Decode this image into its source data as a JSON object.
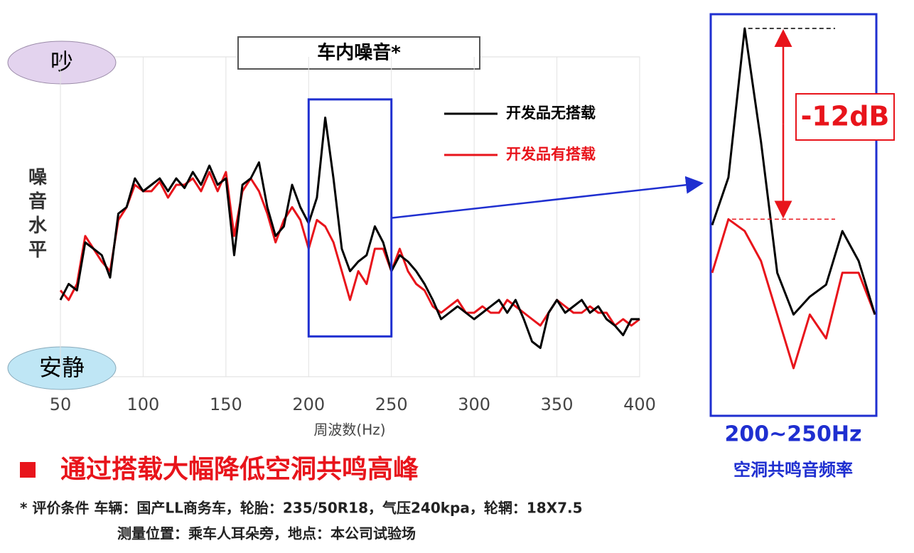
{
  "chart_data": {
    "type": "line",
    "title": "车内噪音*",
    "y_label": "噪音水平",
    "y_high_label": "吵",
    "y_low_label": "安静",
    "x_label": "周波数(Hz)",
    "x": [
      50,
      55,
      60,
      65,
      70,
      75,
      80,
      85,
      90,
      95,
      100,
      105,
      110,
      115,
      120,
      125,
      130,
      135,
      140,
      145,
      150,
      155,
      160,
      165,
      170,
      175,
      180,
      185,
      190,
      195,
      200,
      205,
      210,
      215,
      220,
      225,
      230,
      235,
      240,
      245,
      250,
      255,
      260,
      265,
      270,
      275,
      280,
      285,
      290,
      295,
      300,
      305,
      310,
      315,
      320,
      325,
      330,
      335,
      340,
      345,
      350,
      355,
      360,
      365,
      370,
      375,
      380,
      385,
      390,
      395,
      400
    ],
    "series": [
      {
        "name": "开发品无搭载",
        "color": "#000000",
        "values": [
          24,
          29,
          27,
          42,
          40,
          38,
          31,
          51,
          53,
          62,
          58,
          60,
          62,
          58,
          62,
          59,
          64,
          60,
          66,
          60,
          62,
          38,
          60,
          62,
          67,
          53,
          44,
          47,
          60,
          53,
          48,
          56,
          81,
          62,
          40,
          33,
          36,
          38,
          47,
          42,
          33,
          38,
          36,
          33,
          29,
          24,
          18,
          20,
          22,
          20,
          18,
          20,
          22,
          24,
          20,
          24,
          18,
          11,
          9,
          20,
          24,
          20,
          22,
          24,
          20,
          22,
          18,
          16,
          13,
          18,
          18
        ]
      },
      {
        "name": "开发品有搭载",
        "color": "#e8141b",
        "values": [
          27,
          24,
          29,
          44,
          40,
          36,
          33,
          49,
          53,
          60,
          58,
          58,
          61,
          56,
          60,
          60,
          62,
          58,
          64,
          58,
          64,
          44,
          58,
          62,
          58,
          51,
          42,
          49,
          53,
          49,
          40,
          49,
          47,
          42,
          33,
          24,
          33,
          29,
          40,
          40,
          33,
          40,
          33,
          29,
          27,
          22,
          20,
          22,
          24,
          20,
          20,
          22,
          20,
          20,
          24,
          22,
          20,
          18,
          16,
          20,
          24,
          22,
          20,
          20,
          22,
          20,
          20,
          16,
          18,
          16,
          18
        ]
      }
    ],
    "xlim": [
      50,
      400
    ],
    "xticks": [
      50,
      100,
      150,
      200,
      250,
      300,
      350,
      400
    ],
    "ylim": [
      0,
      100
    ],
    "grid": true,
    "inset": {
      "xlim": [
        200,
        250
      ],
      "label": "200~250Hz",
      "caption": "空洞共鸣音频率",
      "annotation": "-12dB"
    },
    "conclusion": "通过搭载大幅降低空洞共鸣高峰",
    "notes": [
      "* 评价条件  车辆：国产LL商务车，轮胎：235/50R18，气压240kpa，轮辋：18X7.5",
      "测量位置：乘车人耳朵旁，地点：本公司试验场"
    ]
  }
}
